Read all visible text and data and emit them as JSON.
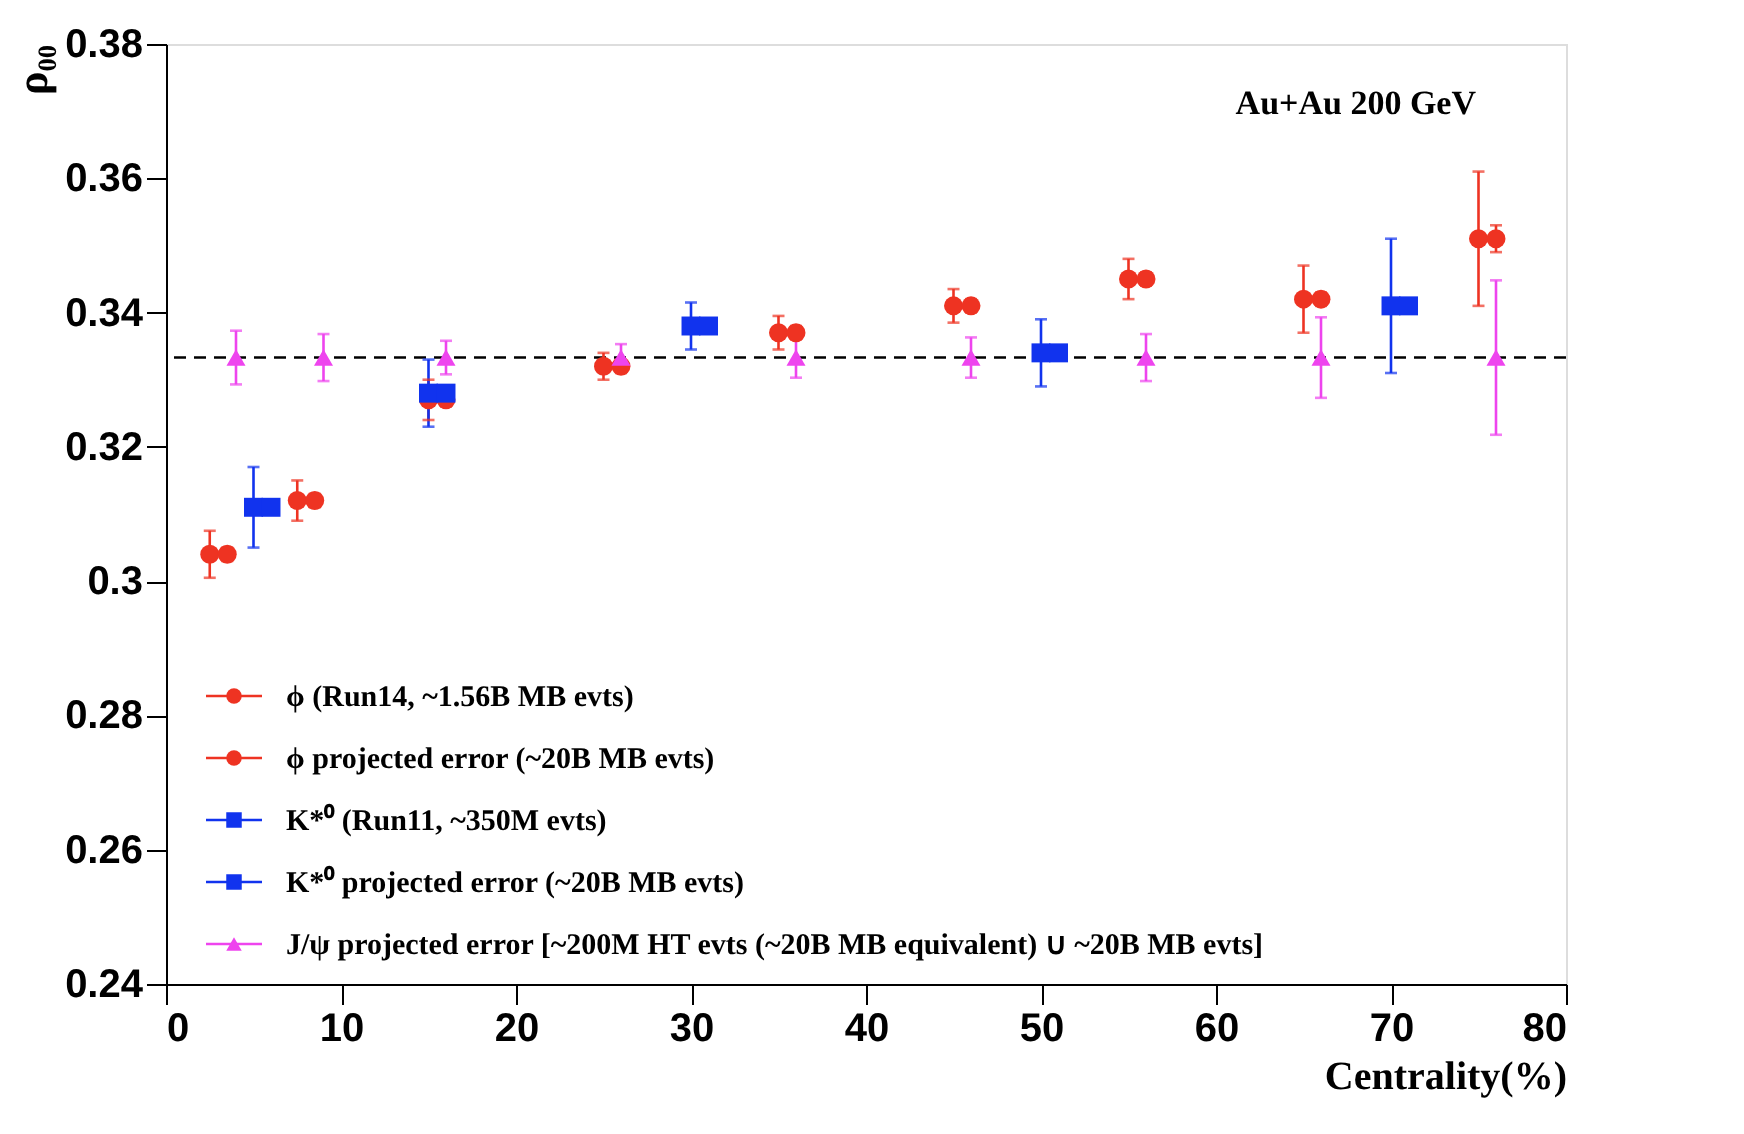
{
  "chart_data": {
    "type": "scatter",
    "xlabel": "Centrality(%)",
    "ylabel": "ρ₀₀",
    "annotations": [
      "Au+Au 200 GeV"
    ],
    "xlim": [
      0,
      80
    ],
    "xticks": [
      0,
      10,
      20,
      30,
      40,
      50,
      60,
      70,
      80
    ],
    "ylim": [
      0.24,
      0.38
    ],
    "yticks": [
      0.24,
      0.26,
      0.28,
      0.3,
      0.32,
      0.34,
      0.36,
      0.38
    ],
    "grid": false,
    "legend": "bottom left",
    "ref_lines": [
      {
        "axis": "y",
        "value": 0.3333,
        "color": "#000000",
        "line_style": "dashed"
      }
    ],
    "series": [
      {
        "name": "ϕ (Run14, ~1.56B MB evts)",
        "color": "#ee3322",
        "marker": "circle",
        "x": [
          2.5,
          7.5,
          15,
          25,
          35,
          45,
          55,
          65,
          75
        ],
        "values": [
          0.304,
          0.312,
          0.327,
          0.332,
          0.337,
          0.341,
          0.345,
          0.342,
          0.351
        ],
        "errors": [
          0.0035,
          0.003,
          0.003,
          0.002,
          0.0025,
          0.0025,
          0.003,
          0.005,
          0.01
        ]
      },
      {
        "name": "ϕ projected error (~20B MB evts)",
        "color": "#ee3322",
        "marker": "circle",
        "x": [
          3.5,
          8.5,
          16,
          26,
          36,
          46,
          56,
          66,
          76
        ],
        "values": [
          0.304,
          0.312,
          0.327,
          0.332,
          0.337,
          0.341,
          0.345,
          0.342,
          0.351
        ],
        "errors": [
          0.001,
          0.001,
          0.001,
          0.001,
          0.001,
          0.001,
          0.001,
          0.001,
          0.002
        ]
      },
      {
        "name": "K*⁰ (Run11, ~350M evts)",
        "color": "#1133ee",
        "marker": "square",
        "x": [
          5,
          15,
          30,
          50,
          70
        ],
        "values": [
          0.311,
          0.328,
          0.338,
          0.334,
          0.341
        ],
        "errors": [
          0.006,
          0.005,
          0.0035,
          0.005,
          0.01
        ]
      },
      {
        "name": "K*⁰ projected error (~20B MB evts)",
        "color": "#1133ee",
        "marker": "square",
        "x": [
          6,
          16,
          31,
          51,
          71
        ],
        "values": [
          0.311,
          0.328,
          0.338,
          0.334,
          0.341
        ],
        "errors": [
          0.001,
          0.001,
          0.001,
          0.001,
          0.001
        ]
      },
      {
        "name": "J/ψ projected error [~200M HT evts (~20B MB equivalent) ∪ ~20B MB evts]",
        "color": "#ee44ee",
        "marker": "triangle",
        "x": [
          4,
          9,
          16,
          26,
          36,
          46,
          56,
          66,
          76
        ],
        "values": [
          0.3333,
          0.3333,
          0.3333,
          0.3333,
          0.3333,
          0.3333,
          0.3333,
          0.3333,
          0.3333
        ],
        "errors": [
          0.004,
          0.0035,
          0.0025,
          0.002,
          0.003,
          0.003,
          0.0035,
          0.006,
          0.0115
        ]
      }
    ]
  }
}
